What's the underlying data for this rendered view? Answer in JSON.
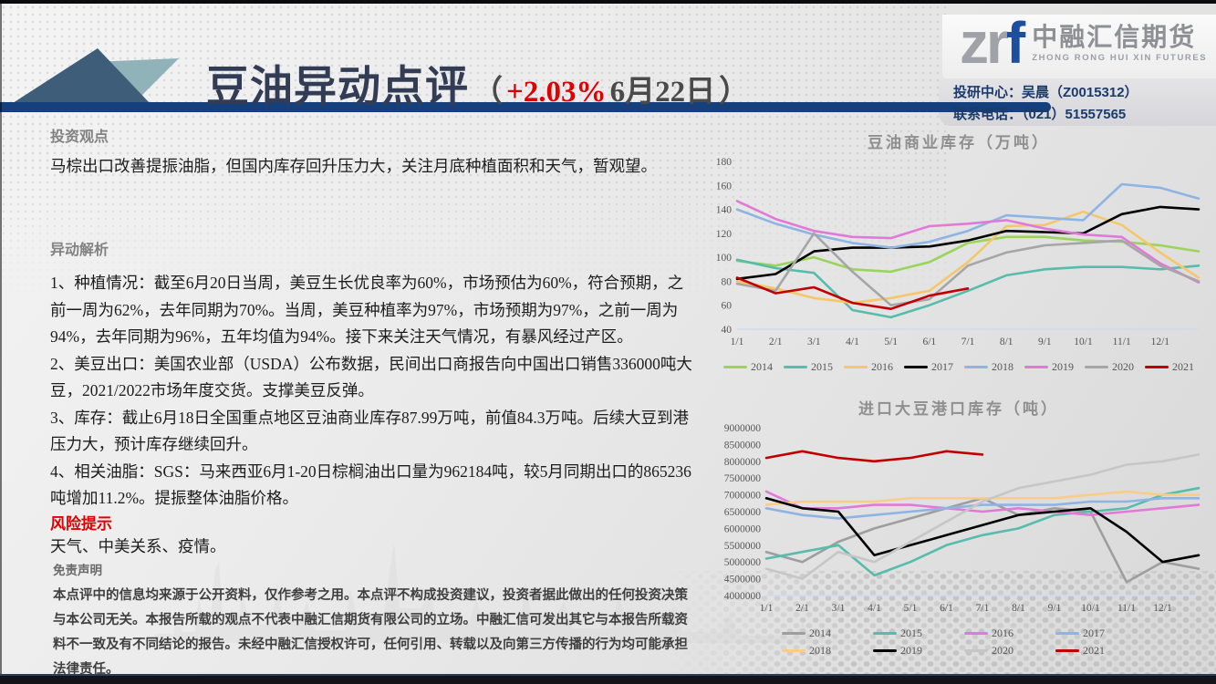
{
  "colors": {
    "accent_navy": "#16407c",
    "title_red": "#e00000",
    "logo_blue": "#1d4f9e",
    "triangle_dark": "#3e5d78",
    "triangle_light": "#8fb3b8"
  },
  "header": {
    "title": "豆油异动点评",
    "paren_open": "（",
    "change": "+2.03%",
    "date": " 6月22日",
    "paren_close": "）",
    "logo_zr": "zr",
    "logo_f": "f",
    "company_cn": "中融汇信期货",
    "company_en": "ZHONG RONG HUI XIN FUTURES",
    "contact_line1": "投研中心：吴晨（Z0015312）",
    "contact_line2": "联系电话：（021）51557565"
  },
  "left": {
    "view_heading": "投资观点",
    "view_text": "马棕出口改善提振油脂，但国内库存回升压力大，关注月底种植面积和天气，暂观望。",
    "analysis_heading": "异动解析",
    "analysis_items": [
      "1、种植情况：截至6月20日当周，美豆生长优良率为60%，市场预估为60%，符合预期，之前一周为62%，去年同期为70%。当周，美豆种植率为97%，市场预期为97%，之前一周为94%，去年同期为96%，五年均值为94%。接下来关注天气情况，有暴风经过产区。",
      "2、美豆出口：美国农业部（USDA）公布数据，民间出口商报告向中国出口销售336000吨大豆，2021/2022市场年度交货。支撑美豆反弹。",
      "3、库存：截止6月18日全国重点地区豆油商业库存87.99万吨，前值84.3万吨。后续大豆到港压力大，预计库存继续回升。",
      "4、相关油脂：SGS：马来西亚6月1-20日棕榈油出口量为962184吨，较5月同期出口的865236吨增加11.2%。提振整体油脂价格。"
    ],
    "risk_heading": "风险提示",
    "risk_text": "天气、中美关系、疫情。",
    "disclaimer_heading": "免责声明",
    "disclaimer_text": "本点评中的信息均来源于公开资料，仅作参考之用。本点评不构成投资建议，投资者据此做出的任何投资决策与本公司无关。本报告所载的观点不代表中融汇信期货有限公司的立场。中融汇信可发出其它与本报告所载资料不一致及有不同结论的报告。未经中融汇信授权许可，任何引用、转载以及向第三方传播的行为均可能承担法律责任。"
  },
  "chart_data": [
    {
      "type": "line",
      "title": "豆油商业库存（万吨）",
      "xlabel": "",
      "ylabel": "万吨",
      "ylim": [
        40,
        180
      ],
      "yticks": [
        180,
        160,
        140,
        120,
        100,
        80,
        60,
        40
      ],
      "grid": false,
      "legend_position": "bottom",
      "categories": [
        "1/1",
        "2/1",
        "3/1",
        "4/1",
        "5/1",
        "6/1",
        "7/1",
        "8/1",
        "9/1",
        "10/1",
        "11/1",
        "12/1",
        ""
      ],
      "series": [
        {
          "name": "2014",
          "color": "#9bd45a",
          "values": [
            97,
            93,
            100,
            90,
            88,
            96,
            112,
            117,
            117,
            114,
            113,
            110,
            105
          ]
        },
        {
          "name": "2015",
          "color": "#57bcab",
          "values": [
            98,
            91,
            87,
            56,
            50,
            60,
            72,
            85,
            90,
            92,
            92,
            90,
            93
          ]
        },
        {
          "name": "2016",
          "color": "#f6c76a",
          "values": [
            80,
            74,
            66,
            62,
            66,
            72,
            96,
            126,
            127,
            138,
            127,
            104,
            83
          ]
        },
        {
          "name": "2017",
          "color": "#000000",
          "values": [
            82,
            86,
            105,
            108,
            108,
            109,
            114,
            122,
            121,
            120,
            136,
            142,
            140
          ]
        },
        {
          "name": "2018",
          "color": "#8eb4e3",
          "values": [
            140,
            128,
            119,
            112,
            108,
            113,
            122,
            135,
            133,
            131,
            161,
            158,
            149
          ]
        },
        {
          "name": "2019",
          "color": "#e279d8",
          "values": [
            147,
            132,
            122,
            117,
            116,
            126,
            128,
            131,
            124,
            119,
            117,
            95,
            79
          ]
        },
        {
          "name": "2020",
          "color": "#a6a6a6",
          "values": [
            78,
            72,
            120,
            88,
            60,
            65,
            93,
            104,
            110,
            112,
            114,
            93,
            80
          ]
        },
        {
          "name": "2021",
          "color": "#c00000",
          "values": [
            83,
            70,
            75,
            62,
            57,
            68,
            74
          ]
        }
      ]
    },
    {
      "type": "line",
      "title": "进口大豆港口库存（吨）",
      "xlabel": "",
      "ylabel": "吨",
      "ylim": [
        4000000,
        9000000
      ],
      "yticks": [
        9000000,
        8500000,
        8000000,
        7500000,
        7000000,
        6500000,
        6000000,
        5500000,
        5000000,
        4500000,
        4000000
      ],
      "grid": false,
      "legend_position": "bottom",
      "categories": [
        "1/1",
        "2/1",
        "3/1",
        "4/1",
        "5/1",
        "6/1",
        "7/1",
        "8/1",
        "9/1",
        "10/1",
        "11/1",
        "12/1",
        ""
      ],
      "series": [
        {
          "name": "2014",
          "color": "#9e9e9e",
          "values": [
            5300000,
            5000000,
            5600000,
            6000000,
            6300000,
            6600000,
            6900000,
            6400000,
            6600000,
            6500000,
            4400000,
            5000000,
            4800000
          ]
        },
        {
          "name": "2015",
          "color": "#57bcab",
          "values": [
            5100000,
            5300000,
            5500000,
            4600000,
            5000000,
            5500000,
            5800000,
            6000000,
            6400000,
            6500000,
            6600000,
            7000000,
            7200000
          ]
        },
        {
          "name": "2016",
          "color": "#e279d8",
          "values": [
            7100000,
            6600000,
            6600000,
            6700000,
            6700000,
            6600000,
            6500000,
            6600000,
            6500000,
            6400000,
            6500000,
            6600000,
            6700000
          ]
        },
        {
          "name": "2017",
          "color": "#8eb4e3",
          "values": [
            6600000,
            6400000,
            6300000,
            6400000,
            6500000,
            6600000,
            6700000,
            6700000,
            6700000,
            6800000,
            6800000,
            6900000,
            6900000
          ]
        },
        {
          "name": "2018",
          "color": "#f8cd8a",
          "values": [
            6700000,
            6800000,
            6800000,
            6800000,
            6900000,
            6900000,
            6900000,
            6900000,
            6900000,
            7000000,
            7100000,
            7000000,
            7000000
          ]
        },
        {
          "name": "2019",
          "color": "#000000",
          "values": [
            6900000,
            6600000,
            6500000,
            5200000,
            5500000,
            5800000,
            6100000,
            6400000,
            6500000,
            6600000,
            5900000,
            5000000,
            5200000
          ]
        },
        {
          "name": "2020",
          "color": "#c6c6c6",
          "values": [
            4800000,
            4500000,
            5300000,
            5000000,
            5600000,
            6200000,
            6800000,
            7200000,
            7400000,
            7600000,
            7900000,
            8000000,
            8200000
          ]
        },
        {
          "name": "2021",
          "color": "#c00000",
          "values": [
            8100000,
            8300000,
            8100000,
            8000000,
            8100000,
            8300000,
            8200000
          ]
        }
      ]
    }
  ]
}
